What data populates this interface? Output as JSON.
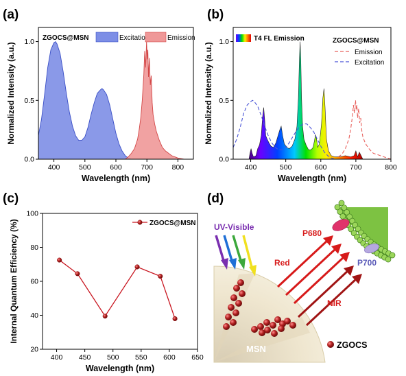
{
  "panels": {
    "a": {
      "label": "(a)"
    },
    "b": {
      "label": "(b)"
    },
    "c": {
      "label": "(c)"
    },
    "d": {
      "label": "(d)"
    }
  },
  "colors": {
    "excitation_fill": "#7d8ee6",
    "excitation_line": "#3a4fc6",
    "emission_fill": "#ef9898",
    "emission_line": "#d24646",
    "efficiency": "#c8141e",
    "red_arrow": "#d71a1a",
    "uv_label": "#7a2fb0",
    "p700": "#5a5ab8",
    "leaf": "#7dc242",
    "msn": "#efe3c8",
    "particle": "#a31b1b"
  },
  "chart_data": [
    {
      "id": "a",
      "type": "area",
      "title": "",
      "legend_title": "ZGOCS@MSN",
      "legend_position": "top",
      "xlabel": "Wavelength (nm)",
      "ylabel": "Normalized Intensity (a.u.)",
      "xlim": [
        350,
        850
      ],
      "ylim": [
        0,
        1.12
      ],
      "xticks": [
        400,
        500,
        600,
        700,
        800
      ],
      "yticks": [
        0.0,
        0.5,
        1.0
      ],
      "ytick_labels": [
        "0.0",
        "0.5",
        "1.0"
      ],
      "series": [
        {
          "name": "Excitation",
          "x": [
            350,
            360,
            370,
            380,
            390,
            400,
            405,
            410,
            420,
            430,
            440,
            450,
            460,
            470,
            480,
            490,
            500,
            510,
            520,
            530,
            540,
            550,
            555,
            560,
            570,
            580,
            590,
            600,
            610,
            620,
            630,
            640,
            650
          ],
          "values": [
            0.2,
            0.34,
            0.55,
            0.78,
            0.93,
            0.99,
            1.0,
            0.98,
            0.9,
            0.74,
            0.56,
            0.4,
            0.28,
            0.2,
            0.16,
            0.16,
            0.19,
            0.27,
            0.38,
            0.48,
            0.56,
            0.59,
            0.6,
            0.59,
            0.55,
            0.46,
            0.34,
            0.22,
            0.13,
            0.07,
            0.03,
            0.01,
            0.0
          ]
        },
        {
          "name": "Emission",
          "x": [
            630,
            640,
            650,
            660,
            670,
            675,
            680,
            685,
            690,
            693,
            696,
            699,
            701,
            703,
            705,
            708,
            711,
            714,
            717,
            720,
            725,
            730,
            735,
            740,
            750,
            760,
            770,
            780,
            790,
            800,
            820,
            850
          ],
          "values": [
            0.0,
            0.02,
            0.05,
            0.09,
            0.17,
            0.25,
            0.35,
            0.5,
            0.72,
            0.92,
            0.78,
            1.0,
            0.85,
            0.93,
            0.7,
            0.86,
            0.63,
            0.71,
            0.48,
            0.38,
            0.3,
            0.24,
            0.2,
            0.16,
            0.1,
            0.07,
            0.05,
            0.03,
            0.02,
            0.01,
            0.0,
            0.0
          ]
        }
      ]
    },
    {
      "id": "b",
      "type": "line",
      "title": "",
      "legend_title": "ZGOCS@MSN",
      "legend_position": "top-right",
      "spectrum_label": "T4 FL Emission",
      "xlabel": "Wavelength (nm)",
      "ylabel": "Normalized Intensity (a.u.)",
      "xlim": [
        350,
        800
      ],
      "ylim": [
        0,
        1.12
      ],
      "xticks": [
        400,
        500,
        600,
        700,
        800
      ],
      "yticks": [
        0.0,
        0.5,
        1.0
      ],
      "ytick_labels": [
        "0.0",
        "0.5",
        "1.0"
      ],
      "series": [
        {
          "name": "T4 FL Emission",
          "x": [
            395,
            398,
            401,
            404,
            408,
            415,
            420,
            425,
            430,
            434,
            437,
            440,
            443,
            447,
            452,
            458,
            465,
            472,
            478,
            483,
            487,
            491,
            496,
            503,
            510,
            518,
            526,
            532,
            536,
            539,
            541,
            543,
            545,
            548,
            552,
            558,
            565,
            572,
            578,
            582,
            585,
            588,
            591,
            596,
            602,
            606,
            609,
            612,
            616,
            622,
            630,
            640,
            655,
            670,
            685,
            695,
            700,
            705,
            710,
            720
          ],
          "values": [
            0.0,
            0.05,
            0.09,
            0.05,
            0.02,
            0.03,
            0.09,
            0.12,
            0.2,
            0.36,
            0.44,
            0.33,
            0.2,
            0.17,
            0.14,
            0.11,
            0.1,
            0.14,
            0.2,
            0.25,
            0.28,
            0.2,
            0.13,
            0.1,
            0.09,
            0.11,
            0.17,
            0.28,
            0.52,
            0.85,
            1.0,
            0.85,
            0.52,
            0.28,
            0.17,
            0.12,
            0.08,
            0.08,
            0.1,
            0.16,
            0.21,
            0.17,
            0.1,
            0.13,
            0.3,
            0.52,
            0.6,
            0.45,
            0.17,
            0.07,
            0.03,
            0.02,
            0.02,
            0.03,
            0.02,
            0.03,
            0.07,
            0.02,
            0.06,
            0.0
          ]
        },
        {
          "name": "Emission",
          "x": [
            650,
            660,
            670,
            675,
            680,
            685,
            690,
            693,
            696,
            699,
            701,
            703,
            705,
            708,
            711,
            714,
            717,
            720,
            725,
            730,
            740,
            750,
            760,
            770,
            780,
            790,
            800
          ],
          "values": [
            0.02,
            0.04,
            0.09,
            0.13,
            0.17,
            0.25,
            0.36,
            0.46,
            0.39,
            0.5,
            0.42,
            0.46,
            0.35,
            0.43,
            0.31,
            0.35,
            0.24,
            0.19,
            0.15,
            0.12,
            0.08,
            0.05,
            0.04,
            0.03,
            0.02,
            0.01,
            0.0
          ]
        },
        {
          "name": "Excitation",
          "x": [
            350,
            360,
            370,
            380,
            390,
            400,
            405,
            410,
            420,
            430,
            440,
            450,
            460,
            470,
            480,
            490,
            500,
            510,
            520,
            530,
            540,
            550,
            555,
            560,
            570,
            580,
            590,
            600,
            610,
            620,
            630,
            640,
            650
          ],
          "values": [
            0.1,
            0.17,
            0.27,
            0.39,
            0.46,
            0.49,
            0.5,
            0.49,
            0.45,
            0.37,
            0.28,
            0.2,
            0.14,
            0.1,
            0.08,
            0.08,
            0.1,
            0.14,
            0.19,
            0.24,
            0.28,
            0.3,
            0.3,
            0.3,
            0.27,
            0.23,
            0.17,
            0.11,
            0.06,
            0.03,
            0.01,
            0.0,
            0.0
          ]
        }
      ]
    },
    {
      "id": "c",
      "type": "line",
      "title": "",
      "legend_position": "top-right",
      "xlabel": "Wavelength (nm)",
      "ylabel": "Internal Quantum Efficiency (%)",
      "xlim": [
        375,
        650
      ],
      "ylim": [
        20,
        100
      ],
      "xticks": [
        400,
        450,
        500,
        550,
        600,
        650
      ],
      "yticks": [
        20,
        40,
        60,
        80,
        100
      ],
      "series": [
        {
          "name": "ZGOCS@MSN",
          "x": [
            405,
            437,
            486,
            543,
            584,
            610
          ],
          "values": [
            72.5,
            64.5,
            39.5,
            68.5,
            63,
            38
          ]
        }
      ]
    }
  ],
  "diagram": {
    "uv_label": "UV-Visible",
    "red_label": "Red",
    "nir_label": "NIR",
    "p680_label": "P680",
    "p700_label": "P700",
    "msn_label": "MSN",
    "particle_legend": "ZGOCS"
  }
}
